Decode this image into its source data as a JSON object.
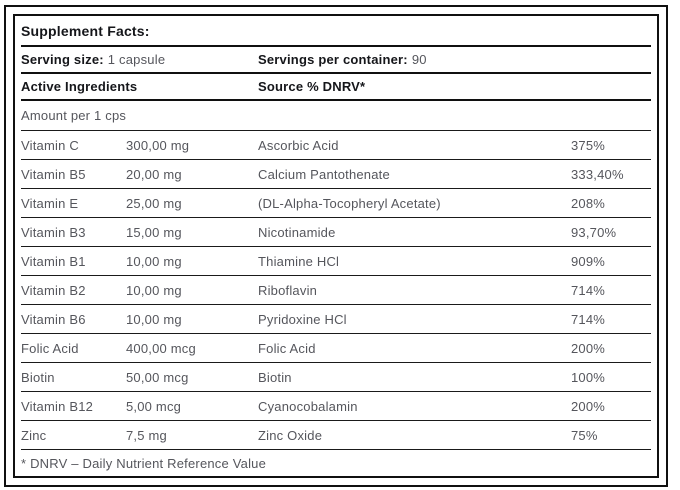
{
  "label": {
    "title": "Supplement Facts:",
    "serving": {
      "size_label": "Serving size:",
      "size_value": "1 capsule",
      "container_label": "Servings per container:",
      "container_value": "90"
    },
    "column_headers": {
      "active_ingredients": "Active Ingredients",
      "source_dnrv": "Source % DNRV*"
    },
    "amount_header": "Amount per 1 cps",
    "table_columns": [
      "name",
      "amount",
      "source",
      "dnrv"
    ],
    "rows": [
      {
        "name": "Vitamin C",
        "amount": "300,00 mg",
        "source": "Ascorbic Acid",
        "dnrv": "375%"
      },
      {
        "name": "Vitamin B5",
        "amount": "20,00 mg",
        "source": "Calcium Pantothenate",
        "dnrv": "333,40%"
      },
      {
        "name": "Vitamin E",
        "amount": "25,00 mg",
        "source": "(DL-Alpha-Tocopheryl Acetate)",
        "dnrv": "208%"
      },
      {
        "name": "Vitamin B3",
        "amount": "15,00 mg",
        "source": "Nicotinamide",
        "dnrv": "93,70%"
      },
      {
        "name": "Vitamin B1",
        "amount": "10,00 mg",
        "source": "Thiamine HCl",
        "dnrv": "909%"
      },
      {
        "name": "Vitamin B2",
        "amount": "10,00 mg",
        "source": "Riboflavin",
        "dnrv": "714%"
      },
      {
        "name": "Vitamin B6",
        "amount": "10,00 mg",
        "source": "Pyridoxine HCl",
        "dnrv": "714%"
      },
      {
        "name": "Folic Acid",
        "amount": "400,00 mcg",
        "source": "Folic Acid",
        "dnrv": "200%"
      },
      {
        "name": "Biotin",
        "amount": "50,00 mcg",
        "source": "Biotin",
        "dnrv": "100%"
      },
      {
        "name": "Vitamin B12",
        "amount": "5,00 mcg",
        "source": "Cyanocobalamin",
        "dnrv": "200%"
      },
      {
        "name": "Zinc",
        "amount": "7,5 mg",
        "source": "Zinc Oxide",
        "dnrv": "75%"
      }
    ],
    "footnote": "* DNRV – Daily Nutrient Reference Value"
  },
  "colors": {
    "border": "#101010",
    "separator": "#1a1a1a",
    "text_dark": "#15161a",
    "text_gray": "#55565c",
    "background": "#ffffff"
  }
}
